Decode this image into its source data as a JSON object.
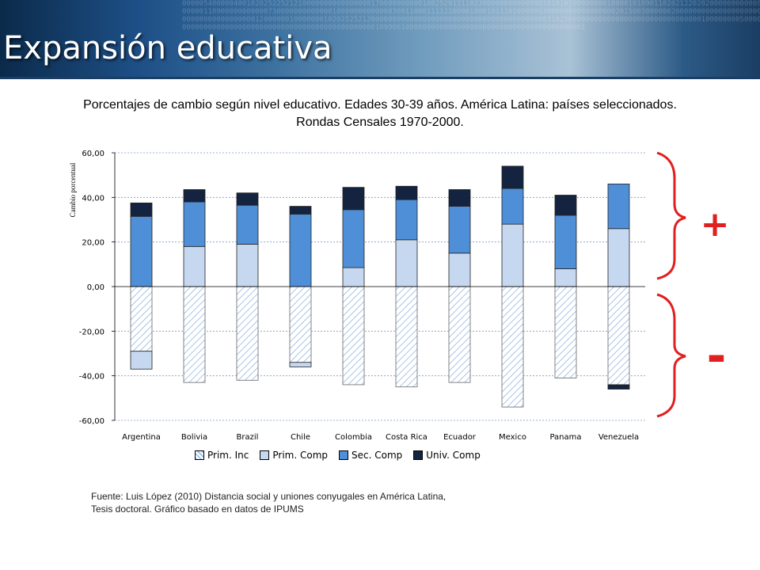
{
  "header": {
    "title": "Expansión educativa",
    "digits": "0000054000004001020252252121000000000000000017000000000010025201311023000000000000001010101000000001000010109011020212202020000000000080000001109000000000007300000000000001000000000000830011000111121000010001011101000009300000000000000002015003000000200000000000000000000000008000000000000120000001000000010202525212000000000000000000000000000000000000000003102500000000000000000000000000000001000000005000000000000000000000000000000000000000000000000001099001000000000000000000000000000000000000000001"
  },
  "subtitle": "Porcentajes de cambio según nivel educativo. Edades 30-39 años. América Latina: países seleccionados. Rondas Censales 1970-2000.",
  "source": {
    "line1": "Fuente: Luis López (2010) Distancia social y uniones conyugales en América Latina,",
    "line2": "Tesis doctoral. Gráfico basado en datos de IPUMS"
  },
  "annotations": {
    "plus": "+",
    "minus": "-"
  },
  "colors": {
    "prim_inc": "#ffffff",
    "prim_inc_hatch": "#a9c4e6",
    "prim_comp": "#c6d8f0",
    "sec_comp": "#4f8fd8",
    "univ_comp": "#14233f",
    "brace": "#e02020"
  },
  "chart_data": {
    "type": "bar",
    "stacked": true,
    "ylabel": "Cambio porcentual",
    "ylim": [
      -60,
      60
    ],
    "yticks": [
      "60,00",
      "40,00",
      "20,00",
      "0,00",
      "-20,00",
      "-40,00",
      "-60,00"
    ],
    "ytick_values": [
      60,
      40,
      20,
      0,
      -20,
      -40,
      -60
    ],
    "grid": true,
    "legend_position": "bottom",
    "categories": [
      "Argentina",
      "Bolivia",
      "Brazil",
      "Chile",
      "Colombia",
      "Costa Rica",
      "Ecuador",
      "Mexico",
      "Panama",
      "Venezuela"
    ],
    "series": [
      {
        "name": "Prim. Inc",
        "values": [
          -29,
          -43,
          -42,
          -34,
          -44,
          -45,
          -43,
          -54,
          -41,
          -44
        ]
      },
      {
        "name": "Prim. Comp",
        "values": [
          -8,
          18,
          19,
          -2,
          8.5,
          21,
          15,
          28,
          8,
          26
        ]
      },
      {
        "name": "Sec. Comp",
        "values": [
          31.5,
          20,
          17.5,
          32.5,
          26,
          18,
          21,
          16,
          24,
          20
        ]
      },
      {
        "name": "Univ. Comp",
        "values": [
          6,
          5.5,
          5.5,
          3.5,
          10,
          6,
          7.5,
          10,
          9,
          -2
        ]
      }
    ]
  }
}
